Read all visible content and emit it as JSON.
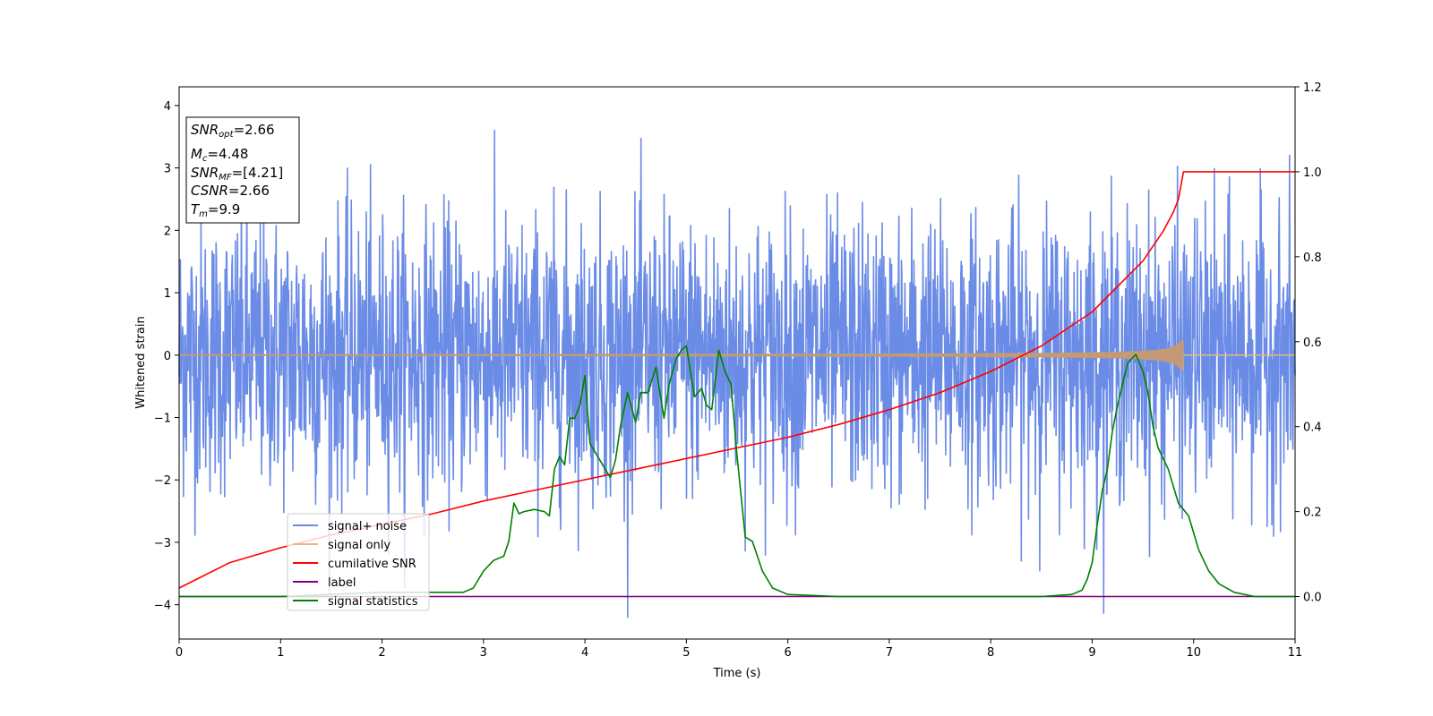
{
  "chart_data": {
    "type": "line",
    "xlabel": "Time (s)",
    "ylabel": "Whitened strain",
    "xlim": [
      0,
      11
    ],
    "ylim": [
      -4.55,
      4.3
    ],
    "y2lim": [
      -0.1,
      1.2
    ],
    "x_ticks": [
      0,
      1,
      2,
      3,
      4,
      5,
      6,
      7,
      8,
      9,
      10,
      11
    ],
    "y_ticks": [
      -4,
      -3,
      -2,
      -1,
      0,
      1,
      2,
      3,
      4
    ],
    "y2_ticks": [
      "0.0",
      "0.2",
      "0.4",
      "0.6",
      "0.8",
      "1.0",
      "1.2"
    ],
    "grid": false,
    "legend_position": "lower-left",
    "colors": {
      "signal_noise": "#6b8ce6",
      "signal_only": "#e8b87a",
      "signal_fill": "#c49a74",
      "cumulative_snr": "#ff0000",
      "label": "#800080",
      "signal_statistics": "#008000"
    },
    "series": [
      {
        "name": "signal+ noise",
        "axis": "left",
        "style": "noise",
        "amplitude": 1.1,
        "peak_range": [
          -4.2,
          3.95
        ]
      },
      {
        "name": "signal only",
        "axis": "left",
        "style": "chirp",
        "start": 0,
        "end": 9.9
      },
      {
        "name": "cumilative SNR",
        "axis": "right",
        "x": [
          0,
          0.5,
          1,
          1.5,
          2,
          2.5,
          3,
          3.5,
          4,
          4.5,
          5,
          5.5,
          6,
          6.5,
          7,
          7.5,
          8,
          8.5,
          9,
          9.5,
          9.7,
          9.8,
          9.85,
          9.9,
          10,
          11
        ],
        "y": [
          0.02,
          0.08,
          0.115,
          0.145,
          0.17,
          0.195,
          0.225,
          0.25,
          0.275,
          0.3,
          0.325,
          0.35,
          0.375,
          0.405,
          0.44,
          0.48,
          0.53,
          0.59,
          0.67,
          0.79,
          0.86,
          0.905,
          0.935,
          1.0,
          1.0,
          1.0
        ]
      },
      {
        "name": "label",
        "axis": "right",
        "x": [
          0,
          11
        ],
        "y": [
          0,
          0
        ]
      },
      {
        "name": "signal statistics",
        "axis": "right",
        "x": [
          0,
          1,
          2,
          2.8,
          2.9,
          3.0,
          3.1,
          3.2,
          3.25,
          3.3,
          3.35,
          3.4,
          3.5,
          3.6,
          3.65,
          3.7,
          3.75,
          3.8,
          3.85,
          3.9,
          3.95,
          4.0,
          4.05,
          4.15,
          4.25,
          4.3,
          4.35,
          4.42,
          4.5,
          4.55,
          4.62,
          4.7,
          4.78,
          4.83,
          4.9,
          4.95,
          5.0,
          5.08,
          5.15,
          5.2,
          5.25,
          5.32,
          5.38,
          5.44,
          5.5,
          5.58,
          5.65,
          5.75,
          5.85,
          6.0,
          6.5,
          7.0,
          8.0,
          8.5,
          8.8,
          8.9,
          8.95,
          9.0,
          9.05,
          9.1,
          9.15,
          9.2,
          9.25,
          9.3,
          9.35,
          9.43,
          9.5,
          9.55,
          9.6,
          9.65,
          9.75,
          9.85,
          9.95,
          10.05,
          10.15,
          10.25,
          10.4,
          10.6,
          11
        ],
        "y": [
          0.0,
          0.0,
          0.01,
          0.01,
          0.02,
          0.06,
          0.085,
          0.095,
          0.13,
          0.22,
          0.195,
          0.2,
          0.205,
          0.2,
          0.19,
          0.3,
          0.33,
          0.31,
          0.42,
          0.42,
          0.45,
          0.52,
          0.36,
          0.32,
          0.28,
          0.32,
          0.4,
          0.48,
          0.41,
          0.48,
          0.48,
          0.54,
          0.42,
          0.5,
          0.56,
          0.58,
          0.59,
          0.47,
          0.49,
          0.45,
          0.44,
          0.58,
          0.53,
          0.5,
          0.33,
          0.14,
          0.13,
          0.06,
          0.02,
          0.005,
          0.0,
          0.0,
          0.0,
          0.0,
          0.005,
          0.015,
          0.04,
          0.08,
          0.17,
          0.25,
          0.3,
          0.39,
          0.45,
          0.5,
          0.55,
          0.57,
          0.53,
          0.48,
          0.4,
          0.35,
          0.3,
          0.22,
          0.19,
          0.11,
          0.06,
          0.03,
          0.01,
          0.0,
          0.0
        ]
      }
    ],
    "annotation_box": {
      "lines": [
        {
          "name": "SNR",
          "sub": "opt",
          "value": "=2.66"
        },
        {
          "name": "M",
          "sub": "c",
          "value": "=4.48"
        },
        {
          "name": "SNR",
          "sub": "MF",
          "value": "=[4.21]"
        },
        {
          "name": "CSNR",
          "sub": "",
          "value": "=2.66"
        },
        {
          "name": "T",
          "sub": "m",
          "value": "=9.9"
        }
      ]
    }
  }
}
